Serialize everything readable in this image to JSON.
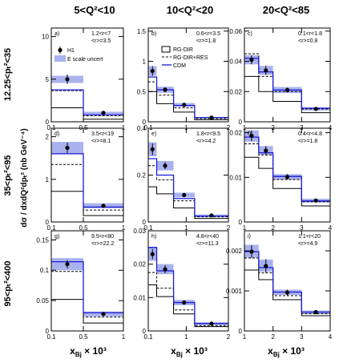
{
  "header": {
    "columns": [
      "5<Q²<10",
      "10<Q²<20",
      "20<Q²<85"
    ],
    "rows": [
      "12.25<pₜ²<35",
      "35<pₜ²<95",
      "95<pₜ²<400"
    ],
    "y_axis_title": "dσ / dxdQ²dpₜ² (nb GeV⁻⁴)",
    "x_axis_title": "x",
    "x_axis_sub": "Bj",
    "x_axis_suffix": " × 10³"
  },
  "legend_left": {
    "h1": "H1",
    "escale": "E scale uncert"
  },
  "legend_right": {
    "rgdir": "RG-DIR",
    "rgres": "RG-DIR+RES",
    "cdm": "CDM"
  },
  "colors": {
    "band": "#aab2ee",
    "cdm": "#1a1ad6",
    "model": "#000000"
  },
  "chart_data": [
    {
      "type": "line",
      "panel": "a)",
      "range_text": "1.2<r<7",
      "mean_text": "<r>=3.5",
      "xlim": [
        0.1,
        1
      ],
      "ylim": [
        0,
        11
      ],
      "xticks": [
        {
          "v": 0.1,
          "t": "0.1"
        },
        {
          "v": 0.5,
          "t": "0.5"
        },
        {
          "v": 1,
          "t": "1"
        }
      ],
      "yticks": [
        {
          "v": 0,
          "t": "0"
        },
        {
          "v": 5,
          "t": "5"
        },
        {
          "v": 10,
          "t": "10"
        }
      ],
      "bins": [
        0.1,
        0.5,
        1
      ],
      "data_x": [
        0.3,
        0.75
      ],
      "data_y": [
        5.0,
        1.05
      ],
      "data_err": [
        0.55,
        0.15
      ],
      "band_lo": [
        4.55,
        0.88
      ],
      "band_hi": [
        5.4,
        1.18
      ],
      "cdm": [
        3.75,
        0.82
      ],
      "rgres": [
        3.65,
        0.7
      ],
      "rgdir": [
        1.65,
        0.3
      ]
    },
    {
      "type": "line",
      "panel": "b)",
      "range_text": "0.6<r<3.5",
      "mean_text": "<r>=1.8",
      "xlim": [
        0.1,
        2
      ],
      "ylim": [
        0,
        1.55
      ],
      "xticks": [
        {
          "v": 0.1,
          "t": "0.1"
        },
        {
          "v": 1,
          "t": "1"
        },
        {
          "v": 2,
          "t": "2"
        }
      ],
      "yticks": [
        {
          "v": 0,
          "t": "0"
        },
        {
          "v": 0.5,
          "t": "0.5"
        },
        {
          "v": 1,
          "t": "1"
        },
        {
          "v": 1.5,
          "t": "1.5"
        }
      ],
      "bins": [
        0.1,
        0.3,
        0.7,
        1.2,
        2
      ],
      "data_x": [
        0.2,
        0.5,
        0.95,
        1.6
      ],
      "data_y": [
        0.84,
        0.53,
        0.28,
        0.07
      ],
      "data_err": [
        0.08,
        0.04,
        0.025,
        0.012
      ],
      "band_lo": [
        0.76,
        0.48,
        0.25,
        0.06
      ],
      "band_hi": [
        0.92,
        0.58,
        0.31,
        0.08
      ],
      "cdm": [
        0.74,
        0.53,
        0.27,
        0.07
      ],
      "rgres": [
        0.66,
        0.44,
        0.23,
        0.055
      ],
      "rgdir": [
        0.5,
        0.3,
        0.16,
        0.035
      ]
    },
    {
      "type": "line",
      "panel": "c)",
      "range_text": "0.1<r<1.8",
      "mean_text": "<r>=0.8",
      "xlim": [
        1,
        4
      ],
      "ylim": [
        0,
        0.062
      ],
      "xticks": [
        {
          "v": 1,
          "t": "1"
        },
        {
          "v": 2,
          "t": "2"
        },
        {
          "v": 3,
          "t": "3"
        },
        {
          "v": 4,
          "t": "4"
        }
      ],
      "yticks": [
        {
          "v": 0,
          "t": "0"
        },
        {
          "v": 0.02,
          "t": "0.02"
        },
        {
          "v": 0.04,
          "t": "0.04"
        },
        {
          "v": 0.06,
          "t": "0.06"
        }
      ],
      "bins": [
        1,
        1.5,
        2,
        3,
        4
      ],
      "data_x": [
        1.25,
        1.75,
        2.5,
        3.5
      ],
      "data_y": [
        0.041,
        0.034,
        0.021,
        0.0085
      ],
      "data_err": [
        0.003,
        0.003,
        0.0015,
        0.001
      ],
      "band_lo": [
        0.038,
        0.031,
        0.019,
        0.0075
      ],
      "band_hi": [
        0.044,
        0.037,
        0.023,
        0.0095
      ],
      "cdm": [
        0.042,
        0.033,
        0.021,
        0.009
      ],
      "rgres": [
        0.045,
        0.03,
        0.02,
        0.0085
      ],
      "rgdir": [
        0.03,
        0.02,
        0.0135,
        0.006
      ]
    },
    {
      "type": "line",
      "panel": "d)",
      "range_text": "3.5<r<19",
      "mean_text": "<r>=8.1",
      "xlim": [
        0.1,
        1
      ],
      "ylim": [
        0,
        2.2
      ],
      "xticks": [
        {
          "v": 0.1,
          "t": "0.1"
        },
        {
          "v": 0.5,
          "t": "0.5"
        },
        {
          "v": 1,
          "t": "1"
        }
      ],
      "yticks": [
        {
          "v": 0,
          "t": "0"
        },
        {
          "v": 1,
          "t": "1"
        },
        {
          "v": 2,
          "t": "2"
        }
      ],
      "bins": [
        0.1,
        0.5,
        1
      ],
      "data_x": [
        0.3,
        0.75
      ],
      "data_y": [
        1.74,
        0.38
      ],
      "data_err": [
        0.12,
        0.04
      ],
      "band_lo": [
        1.6,
        0.32
      ],
      "band_hi": [
        1.88,
        0.44
      ],
      "cdm": [
        1.6,
        0.35
      ],
      "rgres": [
        1.35,
        0.28
      ],
      "rgdir": [
        0.72,
        0.15
      ]
    },
    {
      "type": "line",
      "panel": "e)",
      "range_text": "1.8<r<9.5",
      "mean_text": "<r>=4.2",
      "xlim": [
        0.1,
        2
      ],
      "ylim": [
        0,
        0.4
      ],
      "xticks": [
        {
          "v": 0.1,
          "t": "0.1"
        },
        {
          "v": 1,
          "t": "1"
        },
        {
          "v": 2,
          "t": "2"
        }
      ],
      "yticks": [
        {
          "v": 0,
          "t": "0"
        },
        {
          "v": 0.2,
          "t": "0.2"
        },
        {
          "v": 0.4,
          "t": "0.4"
        }
      ],
      "bins": [
        0.1,
        0.3,
        0.7,
        1.2,
        2
      ],
      "data_x": [
        0.2,
        0.5,
        0.95,
        1.6
      ],
      "data_y": [
        0.31,
        0.24,
        0.115,
        0.028
      ],
      "data_err": [
        0.025,
        0.015,
        0.008,
        0.004
      ],
      "band_lo": [
        0.28,
        0.22,
        0.105,
        0.024
      ],
      "band_hi": [
        0.34,
        0.26,
        0.125,
        0.032
      ],
      "cdm": [
        0.27,
        0.2,
        0.1,
        0.025
      ],
      "rgres": [
        0.24,
        0.18,
        0.09,
        0.022
      ],
      "rgdir": [
        0.15,
        0.12,
        0.06,
        0.015
      ]
    },
    {
      "type": "line",
      "panel": "f)",
      "range_text": "0.4<r<4.8",
      "mean_text": "<r>=1.8",
      "xlim": [
        1,
        4
      ],
      "ylim": [
        0,
        0.021
      ],
      "xticks": [
        {
          "v": 1,
          "t": "1"
        },
        {
          "v": 2,
          "t": "2"
        },
        {
          "v": 3,
          "t": "3"
        },
        {
          "v": 4,
          "t": "4"
        }
      ],
      "yticks": [
        {
          "v": 0,
          "t": "0"
        },
        {
          "v": 0.01,
          "t": "0.01"
        },
        {
          "v": 0.02,
          "t": "0.02"
        }
      ],
      "bins": [
        1,
        1.5,
        2,
        3,
        4
      ],
      "data_x": [
        1.25,
        1.75,
        2.5,
        3.5
      ],
      "data_y": [
        0.0193,
        0.016,
        0.0101,
        0.0048
      ],
      "data_err": [
        0.0012,
        0.001,
        0.0006,
        0.0004
      ],
      "band_lo": [
        0.018,
        0.015,
        0.0095,
        0.0044
      ],
      "band_hi": [
        0.0205,
        0.017,
        0.0107,
        0.0052
      ],
      "cdm": [
        0.019,
        0.0155,
        0.0102,
        0.0047
      ],
      "rgres": [
        0.0175,
        0.015,
        0.0095,
        0.0045
      ],
      "rgdir": [
        0.0145,
        0.012,
        0.0075,
        0.0036
      ]
    },
    {
      "type": "line",
      "panel": "g)",
      "range_text": "9.5<r<80",
      "mean_text": "<r>=22.2",
      "xlim": [
        0.1,
        1
      ],
      "ylim": [
        0,
        0.165
      ],
      "xticks": [
        {
          "v": 0.1,
          "t": "0.1"
        },
        {
          "v": 0.5,
          "t": "0.5"
        },
        {
          "v": 1,
          "t": "1"
        }
      ],
      "yticks": [
        {
          "v": 0,
          "t": "0"
        },
        {
          "v": 0.05,
          "t": "0.05"
        },
        {
          "v": 0.1,
          "t": "0.1"
        },
        {
          "v": 0.15,
          "t": "0.15"
        }
      ],
      "bins": [
        0.1,
        0.5,
        1
      ],
      "data_x": [
        0.3,
        0.75
      ],
      "data_y": [
        0.11,
        0.028
      ],
      "data_err": [
        0.007,
        0.003
      ],
      "band_lo": [
        0.1,
        0.024
      ],
      "band_hi": [
        0.12,
        0.032
      ],
      "cdm": [
        0.114,
        0.03
      ],
      "rgres": [
        0.098,
        0.023
      ],
      "rgdir": [
        0.052,
        0.013
      ]
    },
    {
      "type": "line",
      "panel": "h)",
      "range_text": "4.8<r<40",
      "mean_text": "<r>=11.3",
      "xlim": [
        0.1,
        2
      ],
      "ylim": [
        0,
        0.03
      ],
      "xticks": [
        {
          "v": 0.1,
          "t": "0.1"
        },
        {
          "v": 1,
          "t": "1"
        },
        {
          "v": 2,
          "t": "2"
        }
      ],
      "yticks": [
        {
          "v": 0,
          "t": "0"
        },
        {
          "v": 0.01,
          "t": "0.01"
        },
        {
          "v": 0.02,
          "t": "0.02"
        },
        {
          "v": 0.03,
          "t": "0.03"
        }
      ],
      "bins": [
        0.1,
        0.3,
        0.7,
        1.2,
        2
      ],
      "data_x": [
        0.2,
        0.5,
        0.95,
        1.6
      ],
      "data_y": [
        0.023,
        0.0185,
        0.0085,
        0.0022
      ],
      "data_err": [
        0.0015,
        0.0012,
        0.0006,
        0.0003
      ],
      "band_lo": [
        0.021,
        0.017,
        0.0077,
        0.0018
      ],
      "band_hi": [
        0.0252,
        0.02,
        0.0093,
        0.0026
      ],
      "cdm": [
        0.025,
        0.018,
        0.0085,
        0.0022
      ],
      "rgres": [
        0.0175,
        0.0128,
        0.0063,
        0.0016
      ],
      "rgdir": [
        0.0138,
        0.0103,
        0.0051,
        0.0013
      ]
    },
    {
      "type": "line",
      "panel": "i)",
      "range_text": "1.1<r<20",
      "mean_text": "<r>=4.9",
      "xlim": [
        1,
        4
      ],
      "ylim": [
        0,
        0.0025
      ],
      "xticks": [
        {
          "v": 1,
          "t": "1"
        },
        {
          "v": 2,
          "t": "2"
        },
        {
          "v": 3,
          "t": "3"
        },
        {
          "v": 4,
          "t": "4"
        }
      ],
      "yticks": [
        {
          "v": 0,
          "t": "0"
        },
        {
          "v": 0.001,
          "t": "0.001"
        },
        {
          "v": 0.002,
          "t": "0.002"
        }
      ],
      "bins": [
        1,
        1.5,
        2,
        3,
        4
      ],
      "data_x": [
        1.25,
        1.75,
        2.5,
        3.5
      ],
      "data_y": [
        0.00198,
        0.00162,
        0.00096,
        0.00047
      ],
      "data_err": [
        0.00016,
        0.00017,
        7e-05,
        4e-05
      ],
      "band_lo": [
        0.00183,
        0.00148,
        0.0009,
        0.00043
      ],
      "band_hi": [
        0.00215,
        0.00178,
        0.00103,
        0.00051
      ],
      "cdm": [
        0.00198,
        0.00158,
        0.00097,
        0.00047
      ],
      "rgres": [
        0.00182,
        0.00145,
        0.00088,
        0.00043
      ],
      "rgdir": [
        0.00152,
        0.00128,
        0.00078,
        0.00038
      ]
    }
  ]
}
